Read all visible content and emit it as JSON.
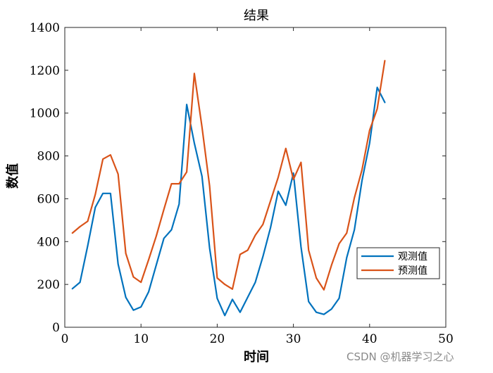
{
  "watermark": "CSDN @机器学习之心",
  "chart_data": {
    "type": "line",
    "title": "结果",
    "xlabel": "时间",
    "ylabel": "数值",
    "xlim": [
      0,
      50
    ],
    "ylim": [
      0,
      1400
    ],
    "xticks": [
      0,
      10,
      20,
      30,
      40,
      50
    ],
    "yticks": [
      0,
      200,
      400,
      600,
      800,
      1000,
      1200,
      1400
    ],
    "grid": false,
    "legend_position": "lower-right",
    "x": [
      1,
      2,
      3,
      4,
      5,
      6,
      7,
      8,
      9,
      10,
      11,
      12,
      13,
      14,
      15,
      16,
      17,
      18,
      19,
      20,
      21,
      22,
      23,
      24,
      25,
      26,
      27,
      28,
      29,
      30,
      31,
      32,
      33,
      34,
      35,
      36,
      37,
      38,
      39,
      40,
      41,
      42
    ],
    "series": [
      {
        "name": "观测值",
        "color": "#0072BD",
        "values": [
          180,
          210,
          380,
          560,
          625,
          625,
          295,
          140,
          80,
          95,
          165,
          290,
          415,
          455,
          575,
          1040,
          860,
          705,
          370,
          135,
          55,
          130,
          70,
          140,
          210,
          330,
          465,
          635,
          570,
          720,
          375,
          120,
          70,
          60,
          85,
          135,
          325,
          455,
          685,
          860,
          1120,
          1050
        ]
      },
      {
        "name": "预测值",
        "color": "#D95319",
        "values": [
          440,
          470,
          495,
          620,
          785,
          805,
          715,
          345,
          235,
          210,
          315,
          425,
          550,
          670,
          670,
          725,
          1185,
          935,
          660,
          230,
          200,
          178,
          340,
          360,
          430,
          480,
          590,
          700,
          835,
          690,
          770,
          360,
          230,
          175,
          290,
          390,
          440,
          605,
          735,
          920,
          1020,
          1245
        ]
      }
    ]
  }
}
